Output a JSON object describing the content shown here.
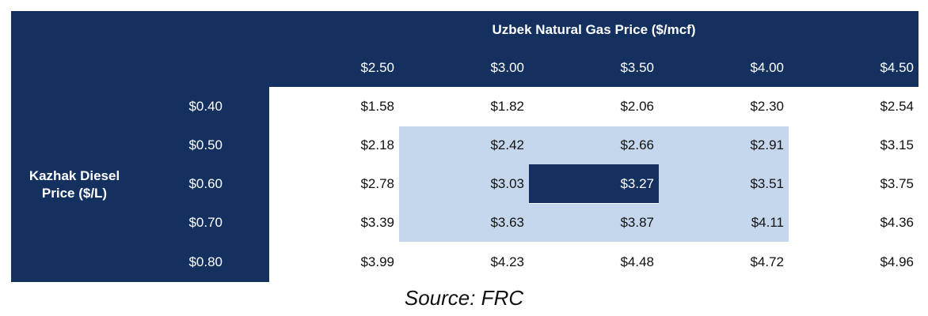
{
  "table": {
    "column_title": "Uzbek Natural Gas Price ($/mcf)",
    "row_title": "Kazhak Diesel Price ($/L)",
    "columns": [
      "$2.50",
      "$3.00",
      "$3.50",
      "$4.00",
      "$4.50"
    ],
    "rows": [
      {
        "label": "$0.40",
        "cells": [
          "$1.58",
          "$1.82",
          "$2.06",
          "$2.30",
          "$2.54"
        ]
      },
      {
        "label": "$0.50",
        "cells": [
          "$2.18",
          "$2.42",
          "$2.66",
          "$2.91",
          "$3.15"
        ]
      },
      {
        "label": "$0.60",
        "cells": [
          "$2.78",
          "$3.03",
          "$3.27",
          "$3.51",
          "$3.75"
        ]
      },
      {
        "label": "$0.70",
        "cells": [
          "$3.39",
          "$3.63",
          "$3.87",
          "$4.11",
          "$4.36"
        ]
      },
      {
        "label": "$0.80",
        "cells": [
          "$3.99",
          "$4.23",
          "$4.48",
          "$4.72",
          "$4.96"
        ]
      }
    ]
  },
  "source": "Source: FRC"
}
